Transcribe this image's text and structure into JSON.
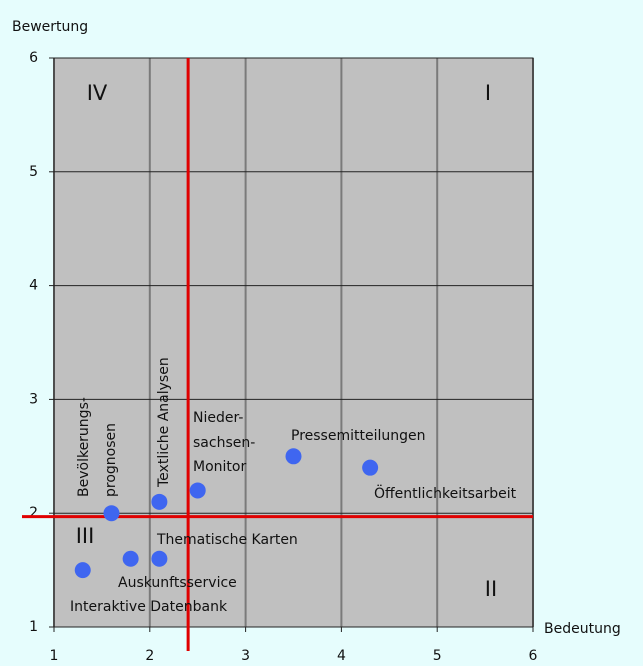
{
  "chart_data": {
    "type": "scatter",
    "x_label": "Bedeutung",
    "y_label": "Bewertung",
    "xlim": [
      1,
      6
    ],
    "ylim": [
      1,
      6
    ],
    "xticks": [
      1,
      2,
      3,
      4,
      5,
      6
    ],
    "yticks": [
      1,
      2,
      3,
      4,
      5,
      6
    ],
    "grid": true,
    "series": [
      {
        "color": "#3f66f0",
        "x": [
          1.3,
          1.6,
          1.8,
          2.1,
          2.1,
          2.5,
          3.5,
          4.3
        ],
        "values": [
          1.5,
          2.0,
          1.6,
          1.6,
          2.1,
          2.2,
          2.5,
          2.4
        ]
      }
    ],
    "point_labels": [
      [
        "Interaktive Datenbank"
      ],
      [
        "Bevölkerungs-",
        "prognosen"
      ],
      [
        "Auskunftsservice"
      ],
      [
        "Thematische Karten"
      ],
      [
        "Textliche Analysen"
      ],
      [
        "Nieder-",
        "sachsen-",
        "Monitor"
      ],
      [
        "Pressemitteilungen"
      ],
      [
        "Öffentlichkeitsarbeit"
      ]
    ],
    "reference_lines": {
      "x": 2.4,
      "y": 1.97,
      "color": "#e00000"
    },
    "quadrant_labels": [
      "I",
      "II",
      "III",
      "IV"
    ]
  }
}
